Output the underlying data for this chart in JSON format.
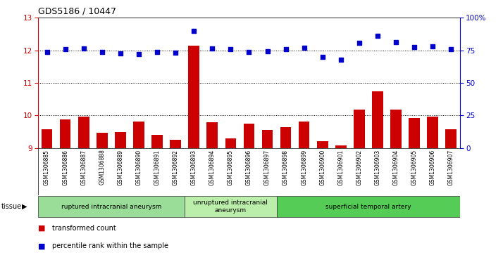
{
  "title": "GDS5186 / 10447",
  "samples": [
    "GSM1306885",
    "GSM1306886",
    "GSM1306887",
    "GSM1306888",
    "GSM1306889",
    "GSM1306890",
    "GSM1306891",
    "GSM1306892",
    "GSM1306893",
    "GSM1306894",
    "GSM1306895",
    "GSM1306896",
    "GSM1306897",
    "GSM1306898",
    "GSM1306899",
    "GSM1306900",
    "GSM1306901",
    "GSM1306902",
    "GSM1306903",
    "GSM1306904",
    "GSM1306905",
    "GSM1306906",
    "GSM1306907"
  ],
  "bar_values": [
    9.57,
    9.87,
    9.97,
    9.47,
    9.48,
    9.82,
    9.4,
    9.25,
    12.15,
    9.78,
    9.3,
    9.75,
    9.55,
    9.63,
    9.82,
    9.2,
    9.07,
    10.17,
    10.75,
    10.17,
    9.92,
    9.97,
    9.58
  ],
  "scatter_values": [
    73.5,
    76.0,
    76.5,
    73.8,
    72.5,
    72.0,
    73.8,
    73.0,
    90.0,
    76.2,
    76.0,
    73.8,
    74.2,
    76.0,
    77.0,
    70.0,
    68.0,
    81.0,
    86.0,
    81.5,
    77.5,
    78.0,
    76.0
  ],
  "ylim_left": [
    9,
    13
  ],
  "ylim_right": [
    0,
    100
  ],
  "yticks_left": [
    9,
    10,
    11,
    12,
    13
  ],
  "yticks_right": [
    0,
    25,
    50,
    75,
    100
  ],
  "bar_color": "#cc0000",
  "scatter_color": "#0000cc",
  "background_color": "#cccccc",
  "plot_bg_color": "#ffffff",
  "groups": [
    {
      "label": "ruptured intracranial aneurysm",
      "start": 0,
      "end": 8,
      "color": "#99dd99"
    },
    {
      "label": "unruptured intracranial\naneurysm",
      "start": 8,
      "end": 13,
      "color": "#bbeeaa"
    },
    {
      "label": "superficial temporal artery",
      "start": 13,
      "end": 23,
      "color": "#55cc55"
    }
  ],
  "tissue_label": "tissue",
  "legend_bar_label": "transformed count",
  "legend_scatter_label": "percentile rank within the sample",
  "grid_lines": [
    10,
    11,
    12
  ],
  "hline_color": "#000000"
}
